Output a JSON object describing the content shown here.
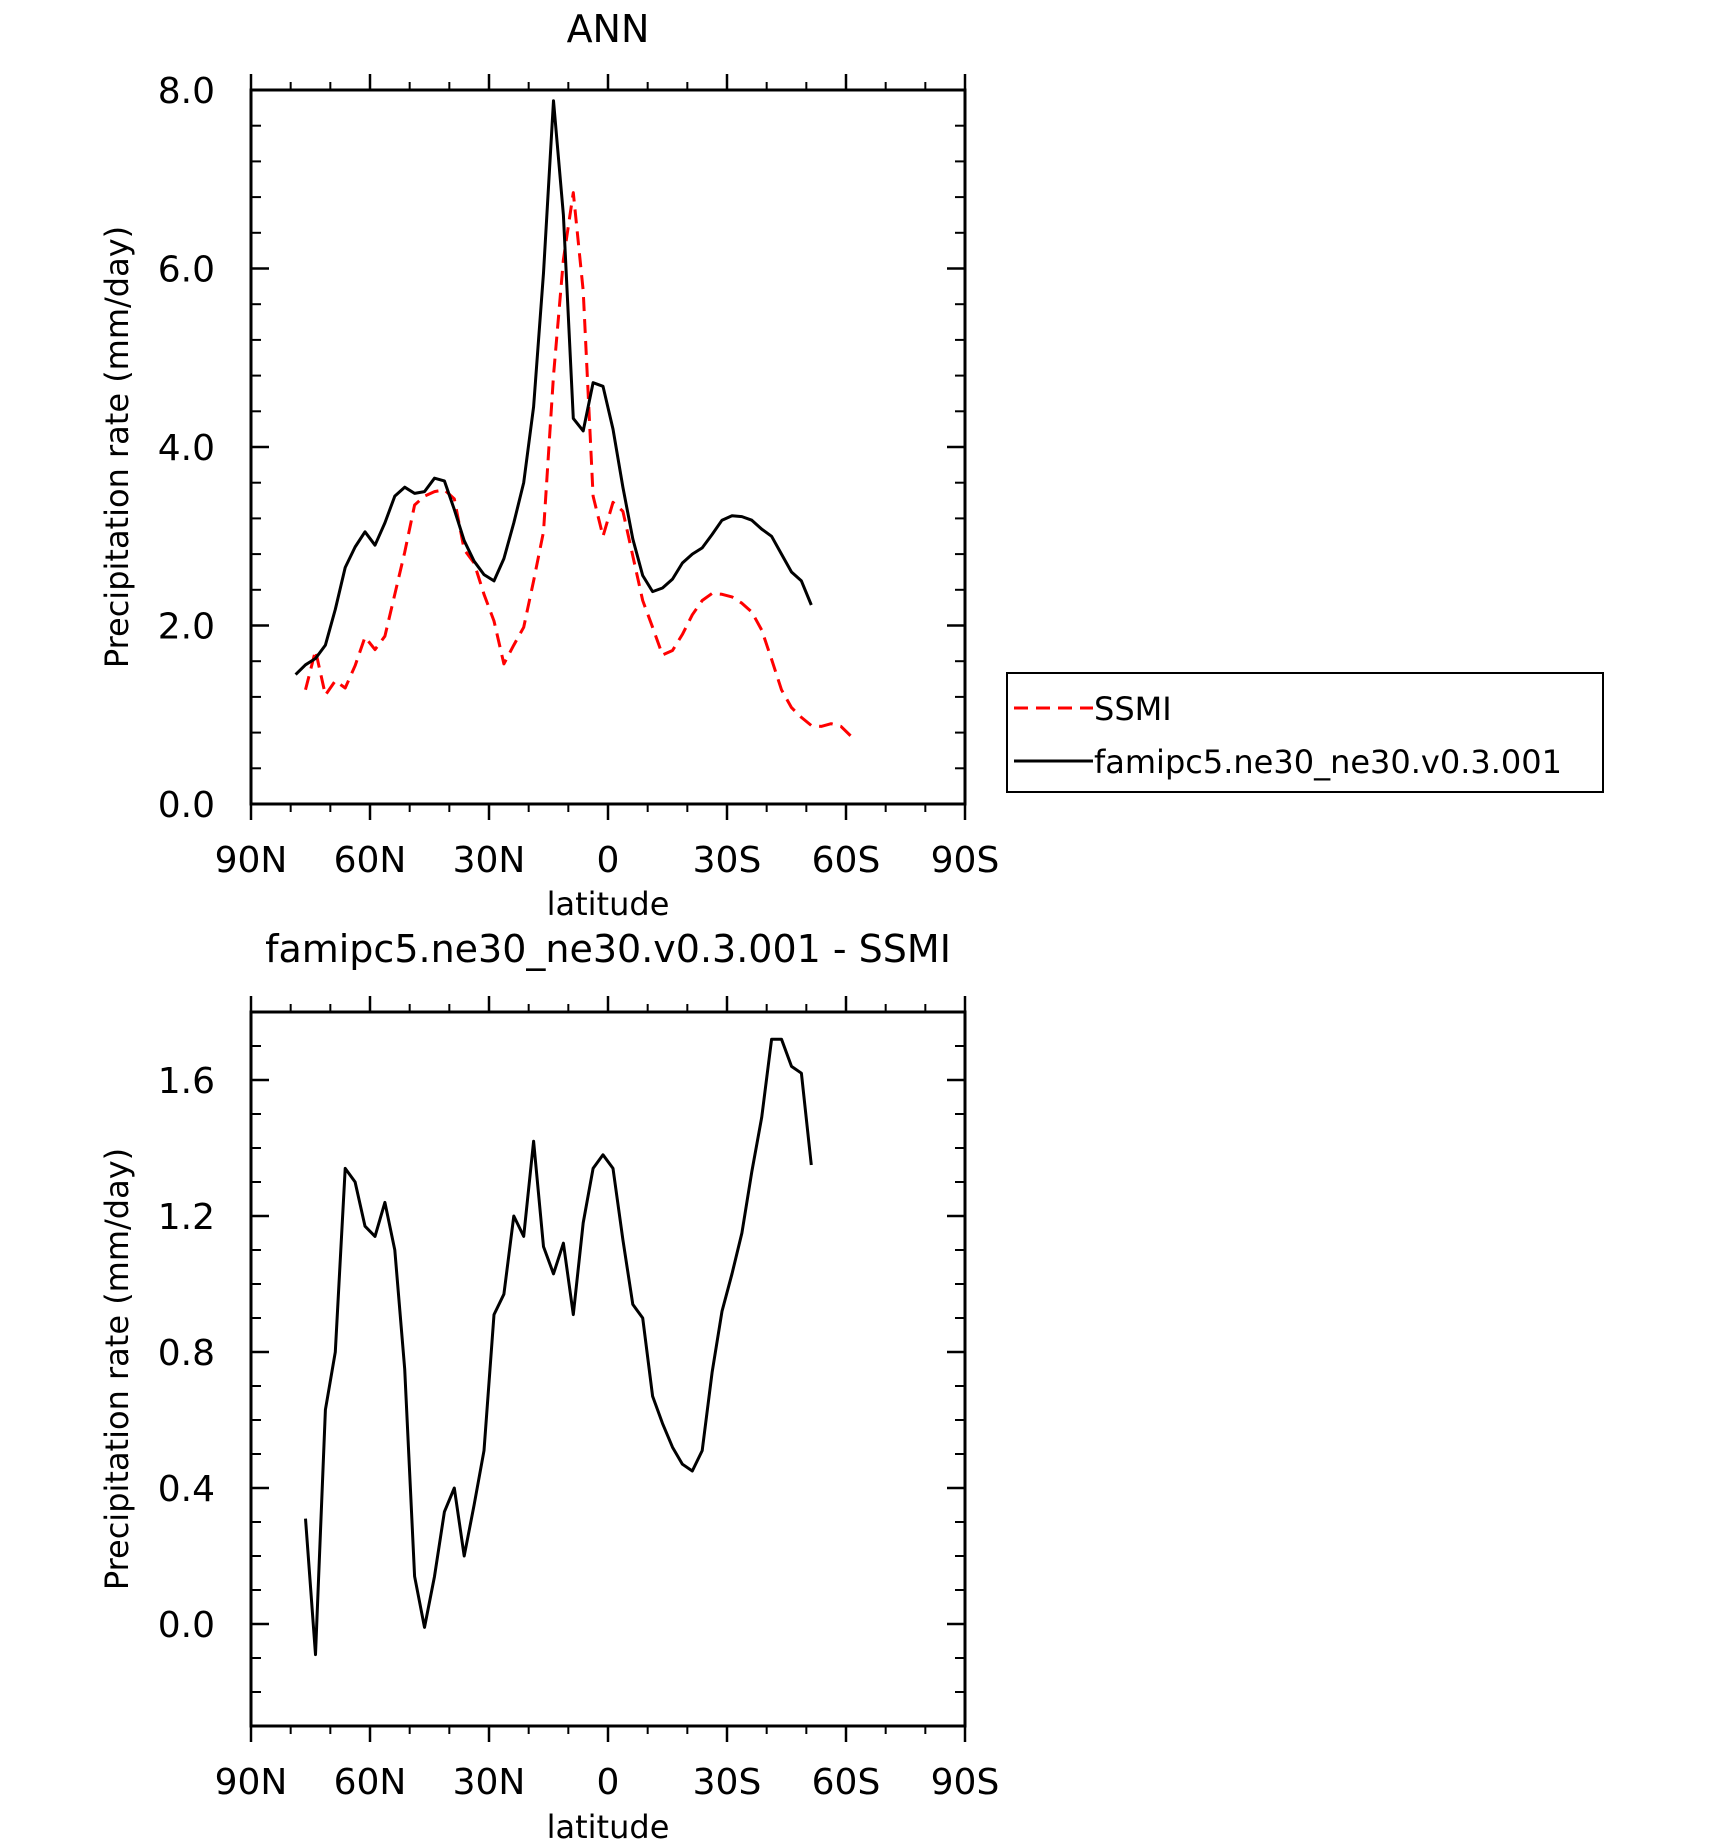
{
  "chart_data": [
    {
      "type": "line",
      "title": "ANN",
      "xlabel": "latitude",
      "ylabel": "Precipitation rate (mm/day)",
      "xlim": [
        90,
        -90
      ],
      "ylim": [
        0,
        8
      ],
      "x_ticks": [
        90,
        60,
        30,
        0,
        -30,
        -60,
        -90
      ],
      "x_tick_labels": [
        "90N",
        "60N",
        "30N",
        "0",
        "30S",
        "60S",
        "90S"
      ],
      "y_ticks": [
        0,
        2,
        4,
        6,
        8
      ],
      "y_tick_labels": [
        "0.0",
        "2.0",
        "4.0",
        "6.0",
        "8.0"
      ],
      "legend_position": "right",
      "series": [
        {
          "name": "SSMI",
          "color": "#ff0000",
          "style": "dashed",
          "points": [
            [
              76.25,
              1.28
            ],
            [
              73.75,
              1.72
            ],
            [
              71.25,
              1.22
            ],
            [
              68.75,
              1.38
            ],
            [
              66.25,
              1.3
            ],
            [
              63.75,
              1.55
            ],
            [
              61.25,
              1.87
            ],
            [
              58.75,
              1.73
            ],
            [
              56.25,
              1.88
            ],
            [
              53.75,
              2.35
            ],
            [
              51.25,
              2.82
            ],
            [
              48.75,
              3.35
            ],
            [
              46.25,
              3.45
            ],
            [
              43.75,
              3.5
            ],
            [
              41.25,
              3.52
            ],
            [
              38.75,
              3.42
            ],
            [
              36.25,
              2.85
            ],
            [
              33.75,
              2.7
            ],
            [
              31.25,
              2.35
            ],
            [
              28.75,
              2.05
            ],
            [
              26.25,
              1.57
            ],
            [
              23.75,
              1.78
            ],
            [
              21.25,
              1.98
            ],
            [
              18.75,
              2.5
            ],
            [
              16.25,
              3.05
            ],
            [
              13.75,
              4.8
            ],
            [
              11.25,
              6.1
            ],
            [
              8.75,
              6.85
            ],
            [
              6.25,
              5.75
            ],
            [
              3.75,
              3.45
            ],
            [
              1.25,
              3.0
            ],
            [
              -1.25,
              3.38
            ],
            [
              -3.75,
              3.28
            ],
            [
              -6.25,
              2.78
            ],
            [
              -8.75,
              2.28
            ],
            [
              -11.25,
              1.98
            ],
            [
              -13.75,
              1.67
            ],
            [
              -16.25,
              1.72
            ],
            [
              -18.75,
              1.9
            ],
            [
              -21.25,
              2.12
            ],
            [
              -23.75,
              2.28
            ],
            [
              -26.25,
              2.36
            ],
            [
              -28.75,
              2.35
            ],
            [
              -31.25,
              2.32
            ],
            [
              -33.75,
              2.25
            ],
            [
              -36.25,
              2.15
            ],
            [
              -38.75,
              1.95
            ],
            [
              -41.25,
              1.62
            ],
            [
              -43.75,
              1.28
            ],
            [
              -46.25,
              1.08
            ],
            [
              -48.75,
              0.97
            ],
            [
              -51.25,
              0.88
            ],
            [
              -53.75,
              0.87
            ],
            [
              -56.25,
              0.9
            ],
            [
              -58.75,
              0.87
            ],
            [
              -61.25,
              0.76
            ]
          ]
        },
        {
          "name": "famipc5.ne30_ne30.v0.3.001",
          "color": "#000000",
          "style": "solid",
          "points": [
            [
              78.75,
              1.45
            ],
            [
              76.25,
              1.56
            ],
            [
              73.75,
              1.63
            ],
            [
              71.25,
              1.78
            ],
            [
              68.75,
              2.18
            ],
            [
              66.25,
              2.65
            ],
            [
              63.75,
              2.88
            ],
            [
              61.25,
              3.05
            ],
            [
              58.75,
              2.9
            ],
            [
              56.25,
              3.15
            ],
            [
              53.75,
              3.45
            ],
            [
              51.25,
              3.55
            ],
            [
              48.75,
              3.48
            ],
            [
              46.25,
              3.5
            ],
            [
              43.75,
              3.65
            ],
            [
              41.25,
              3.62
            ],
            [
              38.75,
              3.3
            ],
            [
              36.25,
              2.95
            ],
            [
              33.75,
              2.72
            ],
            [
              31.25,
              2.57
            ],
            [
              28.75,
              2.5
            ],
            [
              26.25,
              2.75
            ],
            [
              23.75,
              3.15
            ],
            [
              21.25,
              3.6
            ],
            [
              18.75,
              4.45
            ],
            [
              16.25,
              5.95
            ],
            [
              13.75,
              7.88
            ],
            [
              11.25,
              6.6
            ],
            [
              8.75,
              4.32
            ],
            [
              6.25,
              4.18
            ],
            [
              3.75,
              4.72
            ],
            [
              1.25,
              4.68
            ],
            [
              -1.25,
              4.2
            ],
            [
              -3.75,
              3.55
            ],
            [
              -6.25,
              2.97
            ],
            [
              -8.75,
              2.56
            ],
            [
              -11.25,
              2.38
            ],
            [
              -13.75,
              2.42
            ],
            [
              -16.25,
              2.52
            ],
            [
              -18.75,
              2.7
            ],
            [
              -21.25,
              2.8
            ],
            [
              -23.75,
              2.87
            ],
            [
              -26.25,
              3.02
            ],
            [
              -28.75,
              3.18
            ],
            [
              -31.25,
              3.23
            ],
            [
              -33.75,
              3.22
            ],
            [
              -36.25,
              3.18
            ],
            [
              -38.75,
              3.08
            ],
            [
              -41.25,
              3.0
            ],
            [
              -43.75,
              2.8
            ],
            [
              -46.25,
              2.6
            ],
            [
              -48.75,
              2.5
            ],
            [
              -51.25,
              2.23
            ]
          ]
        }
      ]
    },
    {
      "type": "line",
      "title": "famipc5.ne30_ne30.v0.3.001 - SSMI",
      "xlabel": "latitude",
      "ylabel": "Precipitation rate (mm/day)",
      "xlim": [
        90,
        -90
      ],
      "ylim": [
        -0.3,
        1.8
      ],
      "x_ticks": [
        90,
        60,
        30,
        0,
        -30,
        -60,
        -90
      ],
      "x_tick_labels": [
        "90N",
        "60N",
        "30N",
        "0",
        "30S",
        "60S",
        "90S"
      ],
      "y_ticks": [
        0,
        0.4,
        0.8,
        1.2,
        1.6
      ],
      "y_tick_labels": [
        "0.0",
        "0.4",
        "0.8",
        "1.2",
        "1.6"
      ],
      "series": [
        {
          "color": "#000000",
          "style": "solid",
          "points": [
            [
              76.25,
              0.31
            ],
            [
              73.75,
              -0.09
            ],
            [
              71.25,
              0.63
            ],
            [
              68.75,
              0.8
            ],
            [
              66.25,
              1.34
            ],
            [
              63.75,
              1.3
            ],
            [
              61.25,
              1.17
            ],
            [
              58.75,
              1.14
            ],
            [
              56.25,
              1.24
            ],
            [
              53.75,
              1.1
            ],
            [
              51.25,
              0.75
            ],
            [
              48.75,
              0.14
            ],
            [
              46.25,
              -0.01
            ],
            [
              43.75,
              0.14
            ],
            [
              41.25,
              0.33
            ],
            [
              38.75,
              0.4
            ],
            [
              36.25,
              0.2
            ],
            [
              33.75,
              0.35
            ],
            [
              31.25,
              0.51
            ],
            [
              28.75,
              0.91
            ],
            [
              26.25,
              0.97
            ],
            [
              23.75,
              1.2
            ],
            [
              21.25,
              1.14
            ],
            [
              18.75,
              1.42
            ],
            [
              16.25,
              1.11
            ],
            [
              13.75,
              1.03
            ],
            [
              11.25,
              1.12
            ],
            [
              8.75,
              0.91
            ],
            [
              6.25,
              1.18
            ],
            [
              3.75,
              1.34
            ],
            [
              1.25,
              1.38
            ],
            [
              -1.25,
              1.34
            ],
            [
              -3.75,
              1.13
            ],
            [
              -6.25,
              0.94
            ],
            [
              -8.75,
              0.9
            ],
            [
              -11.25,
              0.67
            ],
            [
              -13.75,
              0.59
            ],
            [
              -16.25,
              0.52
            ],
            [
              -18.75,
              0.47
            ],
            [
              -21.25,
              0.45
            ],
            [
              -23.75,
              0.51
            ],
            [
              -26.25,
              0.74
            ],
            [
              -28.75,
              0.92
            ],
            [
              -31.25,
              1.03
            ],
            [
              -33.75,
              1.15
            ],
            [
              -36.25,
              1.33
            ],
            [
              -38.75,
              1.49
            ],
            [
              -41.25,
              1.72
            ],
            [
              -43.75,
              1.72
            ],
            [
              -46.25,
              1.64
            ],
            [
              -48.75,
              1.62
            ],
            [
              -51.25,
              1.35
            ]
          ]
        }
      ]
    }
  ]
}
